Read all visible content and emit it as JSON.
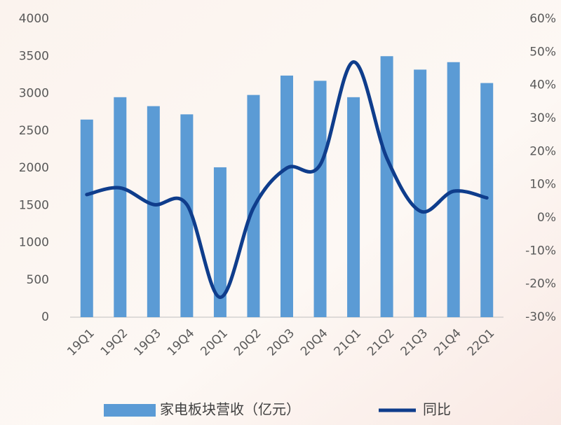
{
  "chart_data": {
    "type": "bar-line",
    "categories": [
      "19Q1",
      "19Q2",
      "19Q3",
      "19Q4",
      "20Q1",
      "20Q2",
      "20Q3",
      "20Q4",
      "21Q1",
      "21Q2",
      "21Q3",
      "21Q4",
      "22Q1"
    ],
    "series": [
      {
        "name": "家电板块营收（亿元）",
        "type": "bar",
        "color": "#5b9bd5",
        "values": [
          2650,
          2950,
          2830,
          2720,
          2010,
          2980,
          3240,
          3170,
          2950,
          3500,
          3320,
          3420,
          3140
        ]
      },
      {
        "name": "同比",
        "type": "line",
        "axis": "y2",
        "color": "#0f3d8c",
        "values": [
          7,
          9,
          4,
          4,
          -24,
          3,
          15,
          16,
          47,
          18,
          2,
          8,
          6
        ]
      }
    ],
    "ylim": [
      0,
      4000
    ],
    "yticks": [
      0,
      500,
      1000,
      1500,
      2000,
      2500,
      3000,
      3500,
      4000
    ],
    "y2lim": [
      -30,
      60
    ],
    "y2ticks": [
      {
        "value": -30,
        "label": "-30%"
      },
      {
        "value": -20,
        "label": "-20%"
      },
      {
        "value": -10,
        "label": "-10%"
      },
      {
        "value": 0,
        "label": "0%"
      },
      {
        "value": 10,
        "label": "10%"
      },
      {
        "value": 20,
        "label": "20%"
      },
      {
        "value": 30,
        "label": "30%"
      },
      {
        "value": 40,
        "label": "40%"
      },
      {
        "value": 50,
        "label": "50%"
      },
      {
        "value": 60,
        "label": "60%"
      }
    ],
    "legend": "bottom",
    "grid": false
  }
}
